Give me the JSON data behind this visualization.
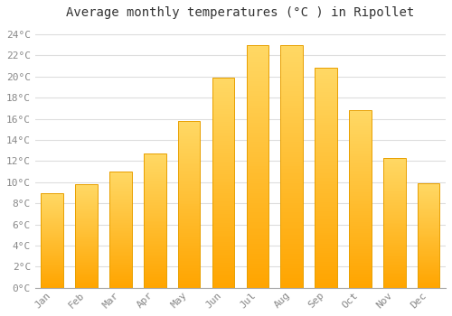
{
  "title": "Average monthly temperatures (°C ) in Ripollet",
  "months": [
    "Jan",
    "Feb",
    "Mar",
    "Apr",
    "May",
    "Jun",
    "Jul",
    "Aug",
    "Sep",
    "Oct",
    "Nov",
    "Dec"
  ],
  "values": [
    9.0,
    9.8,
    11.0,
    12.7,
    15.8,
    19.9,
    23.0,
    23.0,
    20.8,
    16.8,
    12.3,
    9.9
  ],
  "bar_color_bottom": "#FFA500",
  "bar_color_top": "#FFD966",
  "bar_edge_color": "#E8A000",
  "ylim": [
    0,
    25
  ],
  "yticks": [
    0,
    2,
    4,
    6,
    8,
    10,
    12,
    14,
    16,
    18,
    20,
    22,
    24
  ],
  "ytick_labels": [
    "0°C",
    "2°C",
    "4°C",
    "6°C",
    "8°C",
    "10°C",
    "12°C",
    "14°C",
    "16°C",
    "18°C",
    "20°C",
    "22°C",
    "24°C"
  ],
  "grid_color": "#dddddd",
  "background_color": "#ffffff",
  "title_fontsize": 10,
  "tick_fontsize": 8,
  "font_family": "monospace"
}
